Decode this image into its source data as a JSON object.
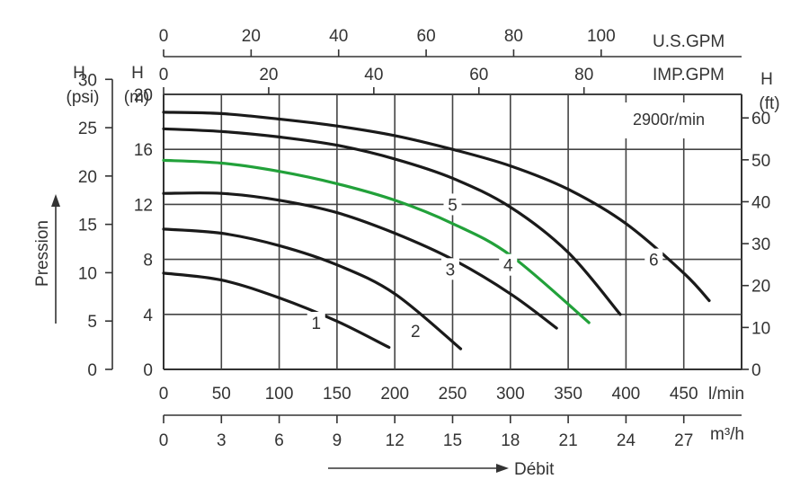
{
  "chart_data": {
    "type": "line",
    "annotation": "2900r/min",
    "x_unit": "l/min",
    "y_unit": "H (m)",
    "xlim": [
      0,
      500
    ],
    "ylim": [
      0,
      20
    ],
    "axes": {
      "top_usgpm": {
        "title": "U.S.GPM",
        "ticks": [
          0,
          20,
          40,
          60,
          80,
          100
        ]
      },
      "top_impgpm": {
        "title": "IMP.GPM",
        "h_label": "H",
        "ticks": [
          0,
          20,
          40,
          60,
          80
        ]
      },
      "left_psi": {
        "h_label": "H",
        "unit_label": "(psi)",
        "ticks": [
          0,
          5,
          10,
          15,
          20,
          25,
          30
        ]
      },
      "left_m": {
        "h_label": "H",
        "unit_label": "(m)",
        "ticks": [
          0,
          4,
          8,
          12,
          16,
          20
        ]
      },
      "right_ft": {
        "h_label": "H",
        "unit_label": "(ft)",
        "ticks": [
          0,
          10,
          20,
          30,
          40,
          50,
          60
        ]
      },
      "bottom_lmin": {
        "unit_label": "l/min",
        "ticks": [
          0,
          50,
          100,
          150,
          200,
          250,
          300,
          350,
          400,
          450
        ]
      },
      "bottom_m3h": {
        "unit_label": "m³/h",
        "ticks": [
          0,
          3,
          6,
          9,
          12,
          15,
          18,
          21,
          24,
          27
        ]
      }
    },
    "axis_titles": {
      "y": "Pression",
      "x": "Débit"
    },
    "series": [
      {
        "label": "1",
        "color": "#1a1a1a",
        "x": [
          0,
          50,
          100,
          150,
          195
        ],
        "y": [
          7.0,
          6.5,
          5.2,
          3.5,
          1.6
        ]
      },
      {
        "label": "2",
        "color": "#1a1a1a",
        "x": [
          0,
          50,
          100,
          150,
          200,
          257
        ],
        "y": [
          10.2,
          9.9,
          9.0,
          7.6,
          5.5,
          1.5
        ]
      },
      {
        "label": "3",
        "color": "#1a1a1a",
        "x": [
          0,
          50,
          100,
          150,
          200,
          250,
          300,
          340
        ],
        "y": [
          12.8,
          12.8,
          12.3,
          11.4,
          9.9,
          8.0,
          5.5,
          3.0
        ]
      },
      {
        "label": "4",
        "color": "#22a13a",
        "x": [
          0,
          50,
          100,
          150,
          200,
          250,
          300,
          368
        ],
        "y": [
          15.2,
          15.0,
          14.4,
          13.5,
          12.3,
          10.6,
          8.3,
          3.4
        ]
      },
      {
        "label": "5",
        "color": "#1a1a1a",
        "x": [
          0,
          50,
          100,
          150,
          200,
          250,
          300,
          350,
          395
        ],
        "y": [
          17.5,
          17.3,
          16.9,
          16.3,
          15.3,
          13.9,
          11.8,
          8.5,
          4.0
        ]
      },
      {
        "label": "6",
        "color": "#1a1a1a",
        "x": [
          0,
          50,
          100,
          150,
          200,
          250,
          300,
          350,
          400,
          450,
          472
        ],
        "y": [
          18.7,
          18.6,
          18.2,
          17.7,
          17.0,
          16.0,
          14.8,
          13.1,
          10.6,
          7.0,
          5.0
        ]
      }
    ],
    "series_label_pos": [
      {
        "x": 132,
        "y": 3.4
      },
      {
        "x": 218,
        "y": 2.8
      },
      {
        "x": 248,
        "y": 7.3
      },
      {
        "x": 298,
        "y": 7.6
      },
      {
        "x": 250,
        "y": 12.0
      },
      {
        "x": 424,
        "y": 8.0
      }
    ],
    "grid": true
  }
}
